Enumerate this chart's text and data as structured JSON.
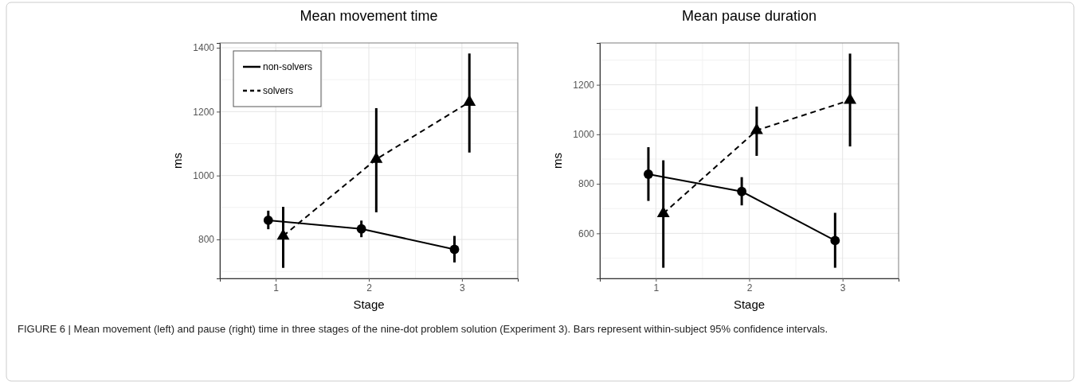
{
  "chart_data": [
    {
      "type": "line",
      "title": "Mean movement time",
      "xlabel": "Stage",
      "ylabel": "ms",
      "xlim": [
        0.4,
        3.6
      ],
      "xticks": [
        1,
        2,
        3
      ],
      "ylim": [
        678,
        1415
      ],
      "yticks": [
        800,
        1000,
        1200,
        1400
      ],
      "grid": true,
      "legend": "top left",
      "series": [
        {
          "name": "non-solvers",
          "color": "#000000",
          "marker": "circle",
          "line_style": "solid",
          "x": [
            0.92,
            1.92,
            2.92
          ],
          "values": [
            860,
            833,
            769
          ],
          "errors": [
            [
              832,
              890
            ],
            [
              807,
              859
            ],
            [
              728,
              811
            ]
          ]
        },
        {
          "name": "solvers",
          "color": "#000000",
          "marker": "triangle",
          "line_style": "dashed",
          "x": [
            1.08,
            2.08,
            3.08
          ],
          "values": [
            811,
            1051,
            1230
          ],
          "errors": [
            [
              711,
              902
            ],
            [
              885,
              1211
            ],
            [
              1072,
              1382
            ]
          ]
        }
      ],
      "annotations": [
        "FIGURE 6 | Mean movement (left) and pause (right) time in three stages of the nine-dot problem solution (Experiment 3). Bars represent within-subject 95% confidence intervals."
      ]
    },
    {
      "type": "line",
      "title": "Mean pause duration",
      "xlabel": "Stage",
      "ylabel": "ms",
      "xlim": [
        0.4,
        3.6
      ],
      "xticks": [
        1,
        2,
        3
      ],
      "ylim": [
        418,
        1369
      ],
      "yticks": [
        600,
        800,
        1000,
        1200
      ],
      "grid": true,
      "series": [
        {
          "color": "#000000",
          "marker": "circle",
          "line_style": "solid",
          "x": [
            0.92,
            1.92,
            2.92
          ],
          "values": [
            839,
            769,
            571
          ],
          "errors": [
            [
              731,
              948
            ],
            [
              713,
              827
            ],
            [
              461,
              683
            ]
          ]
        },
        {
          "color": "#000000",
          "marker": "triangle",
          "line_style": "dashed",
          "x": [
            1.08,
            2.08,
            3.08
          ],
          "values": [
            680,
            1016,
            1138
          ],
          "errors": [
            [
              461,
              895
            ],
            [
              913,
              1112
            ],
            [
              951,
              1326
            ]
          ]
        }
      ]
    }
  ]
}
